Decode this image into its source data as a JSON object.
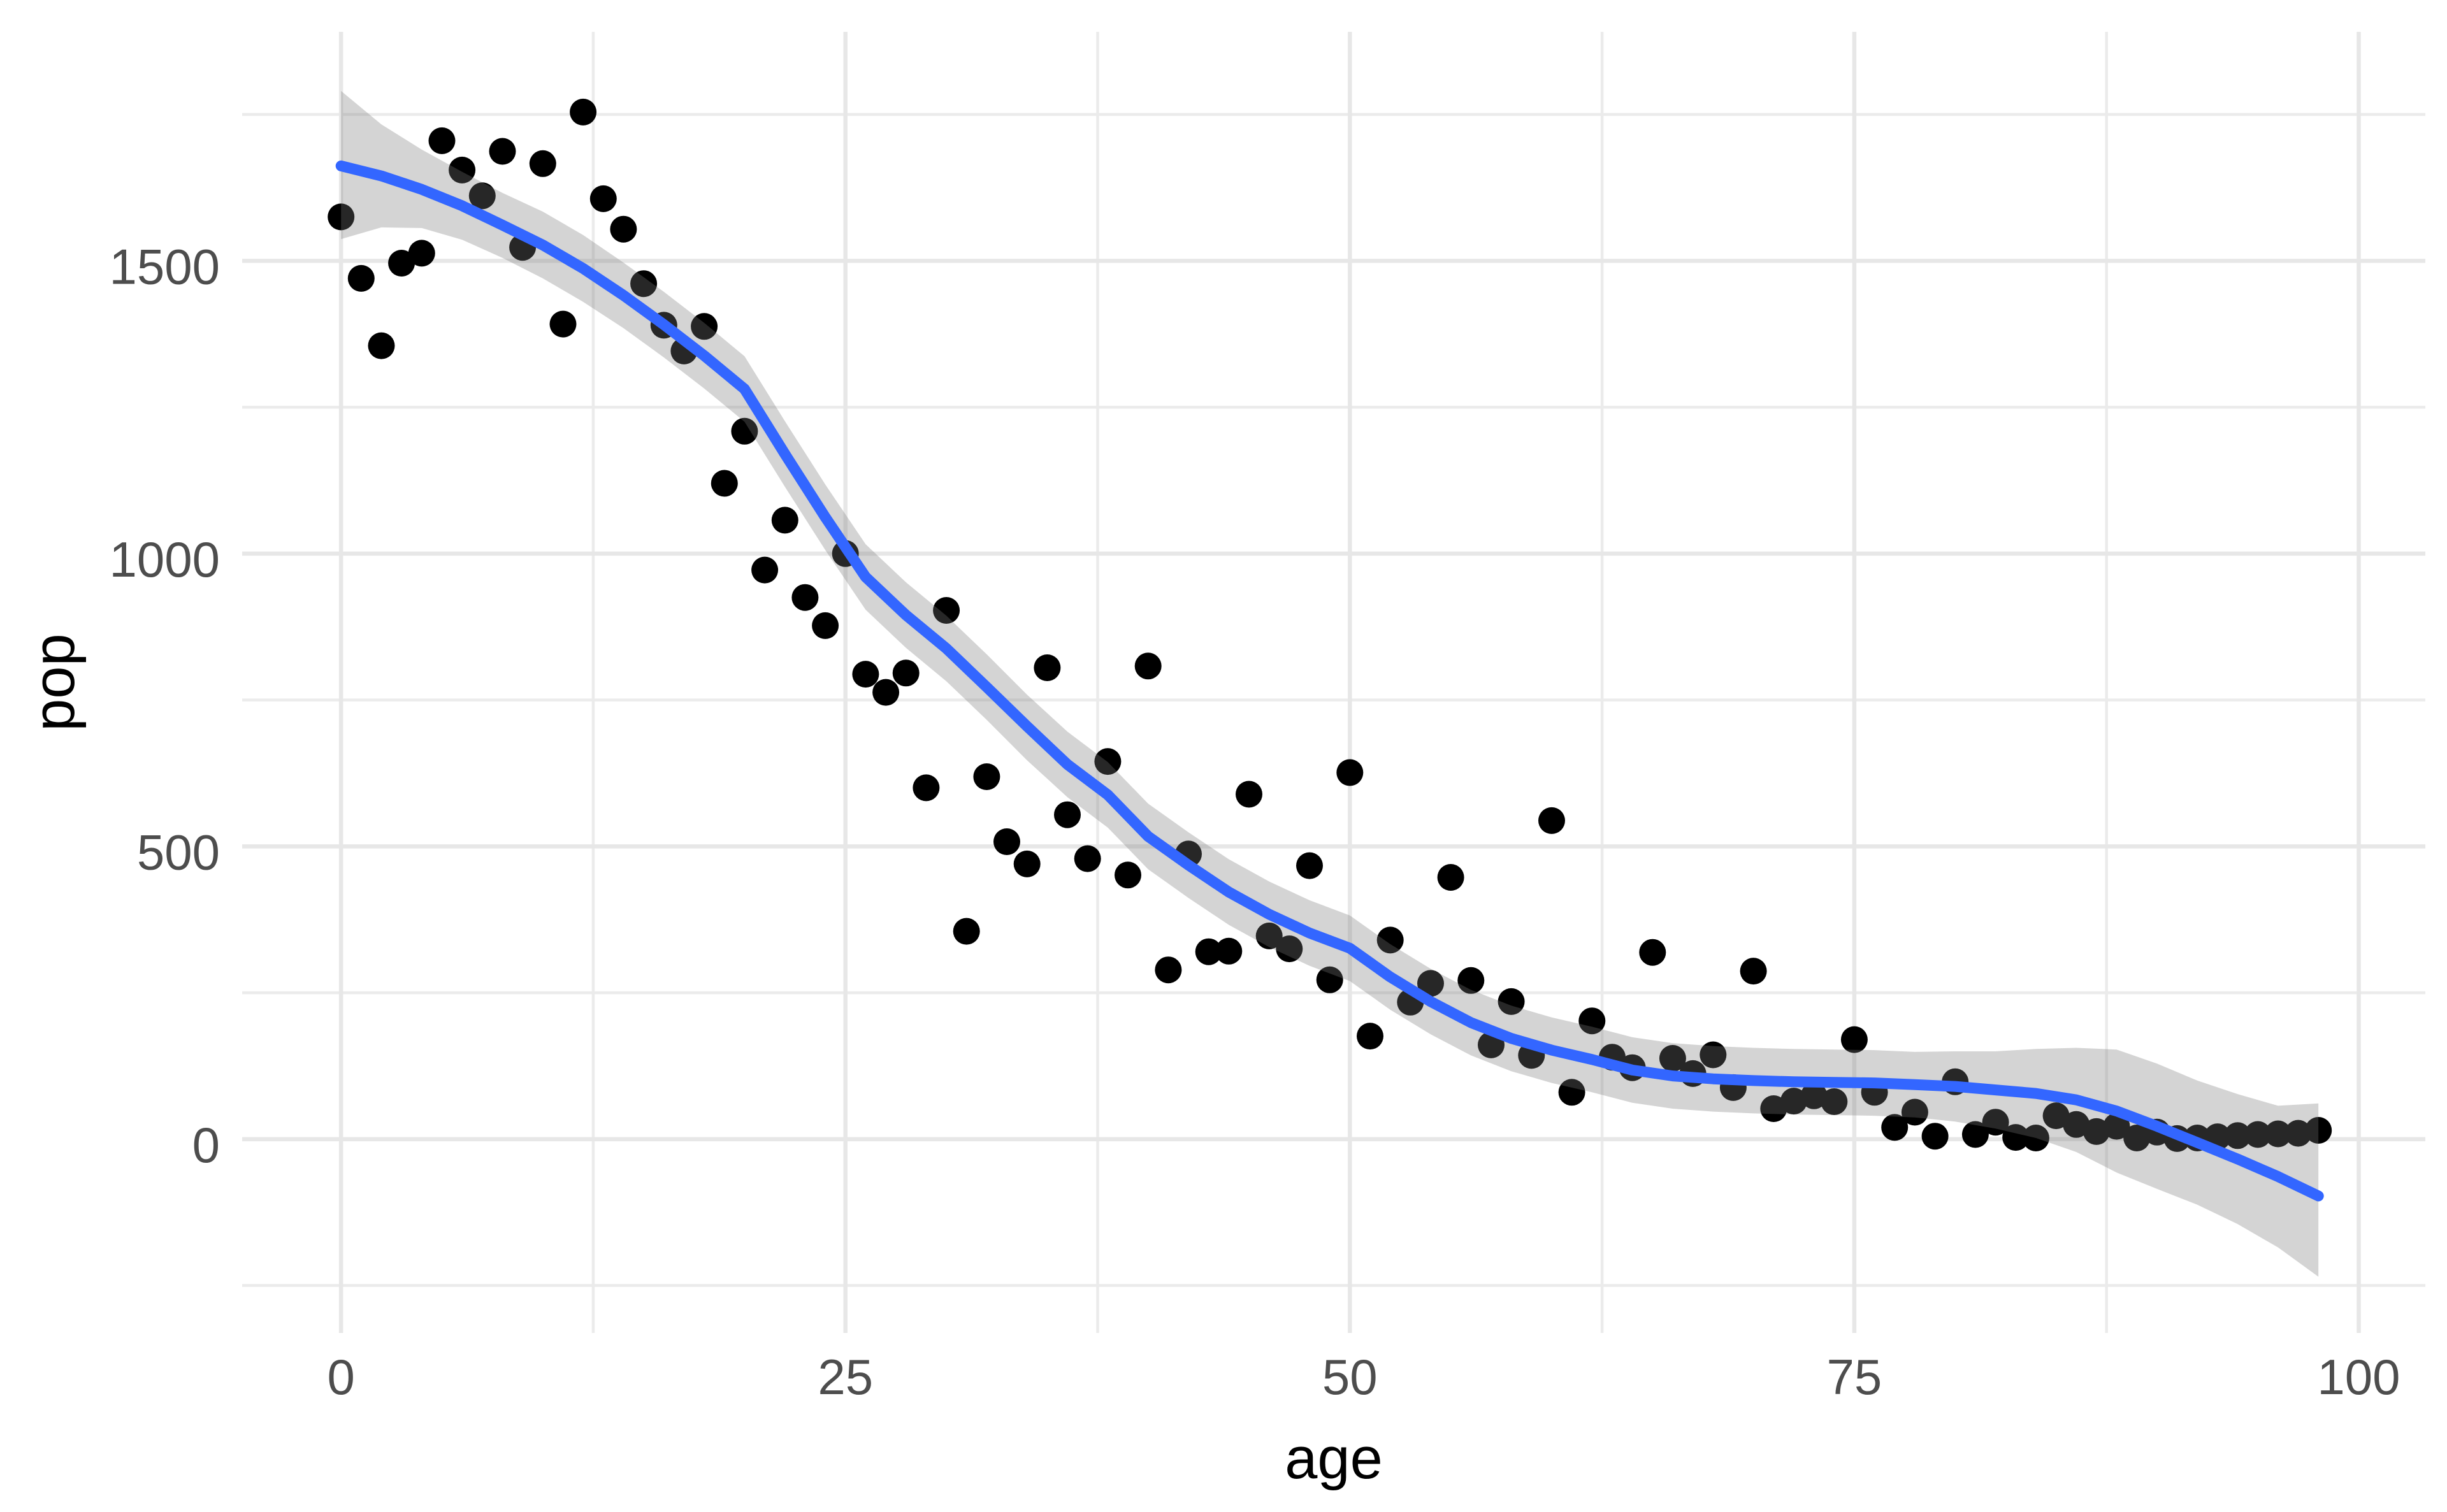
{
  "chart_data": {
    "type": "scatter",
    "title": "",
    "xlabel": "age",
    "ylabel": "pop",
    "xlim": [
      -4.9,
      103.3
    ],
    "ylim": [
      -331,
      1891
    ],
    "grid": true,
    "legend": "none",
    "x_ticks": [
      {
        "value": 0,
        "label": "0"
      },
      {
        "value": 25,
        "label": "25"
      },
      {
        "value": 50,
        "label": "50"
      },
      {
        "value": 75,
        "label": "75"
      },
      {
        "value": 100,
        "label": "100"
      }
    ],
    "y_ticks": [
      {
        "value": 0,
        "label": "0"
      },
      {
        "value": 500,
        "label": "500"
      },
      {
        "value": 1000,
        "label": "1000"
      },
      {
        "value": 1500,
        "label": "1500"
      }
    ],
    "x_minor_ticks": [
      12.5,
      37.5,
      62.5,
      87.5
    ],
    "y_minor_ticks": [
      -250,
      250,
      750,
      1250,
      1750
    ],
    "series": [
      {
        "name": "observations",
        "type": "scatter",
        "color": "#000000",
        "points": [
          [
            0,
            1575
          ],
          [
            1,
            1470
          ],
          [
            2,
            1355
          ],
          [
            3,
            1496
          ],
          [
            4,
            1513
          ],
          [
            5,
            1705
          ],
          [
            6,
            1655
          ],
          [
            7,
            1611
          ],
          [
            8,
            1687
          ],
          [
            9,
            1523
          ],
          [
            10,
            1666
          ],
          [
            11,
            1392
          ],
          [
            12,
            1754
          ],
          [
            13,
            1606
          ],
          [
            14,
            1554
          ],
          [
            15,
            1461
          ],
          [
            16,
            1390
          ],
          [
            17,
            1346
          ],
          [
            18,
            1388
          ],
          [
            19,
            1120
          ],
          [
            20,
            1209
          ],
          [
            21,
            972
          ],
          [
            22,
            1057
          ],
          [
            23,
            925
          ],
          [
            24,
            877
          ],
          [
            25,
            1000
          ],
          [
            26,
            794
          ],
          [
            27,
            763
          ],
          [
            28,
            796
          ],
          [
            29,
            600
          ],
          [
            30,
            903
          ],
          [
            31,
            355
          ],
          [
            32,
            619
          ],
          [
            33,
            508
          ],
          [
            34,
            470
          ],
          [
            35,
            805
          ],
          [
            36,
            554
          ],
          [
            37,
            479
          ],
          [
            38,
            645
          ],
          [
            39,
            451
          ],
          [
            40,
            808
          ],
          [
            41,
            289
          ],
          [
            42,
            487
          ],
          [
            43,
            320
          ],
          [
            44,
            321
          ],
          [
            45,
            589
          ],
          [
            46,
            347
          ],
          [
            47,
            325
          ],
          [
            48,
            467
          ],
          [
            49,
            272
          ],
          [
            50,
            626
          ],
          [
            51,
            176
          ],
          [
            52,
            340
          ],
          [
            53,
            234
          ],
          [
            54,
            266
          ],
          [
            55,
            447
          ],
          [
            56,
            271
          ],
          [
            57,
            161
          ],
          [
            58,
            235
          ],
          [
            59,
            143
          ],
          [
            60,
            544
          ],
          [
            61,
            80
          ],
          [
            62,
            202
          ],
          [
            63,
            140
          ],
          [
            64,
            122
          ],
          [
            65,
            319
          ],
          [
            66,
            138
          ],
          [
            67,
            112
          ],
          [
            68,
            144
          ],
          [
            69,
            88
          ],
          [
            70,
            287
          ],
          [
            71,
            52
          ],
          [
            72,
            65
          ],
          [
            73,
            74
          ],
          [
            74,
            64
          ],
          [
            75,
            170
          ],
          [
            76,
            80
          ],
          [
            77,
            20
          ],
          [
            78,
            46
          ],
          [
            79,
            5
          ],
          [
            80,
            98
          ],
          [
            81,
            8
          ],
          [
            82,
            29
          ],
          [
            83,
            3
          ],
          [
            84,
            2
          ],
          [
            85,
            40
          ],
          [
            86,
            25
          ],
          [
            87,
            13
          ],
          [
            88,
            22
          ],
          [
            89,
            2
          ],
          [
            90,
            12
          ],
          [
            91,
            1
          ],
          [
            92,
            2
          ],
          [
            93,
            4
          ],
          [
            94,
            6
          ],
          [
            95,
            8
          ],
          [
            96,
            9
          ],
          [
            97,
            10
          ],
          [
            98,
            15
          ]
        ]
      },
      {
        "name": "loess-smooth",
        "type": "line",
        "color": "#3366ff",
        "points": [
          [
            0,
            1662
          ],
          [
            2,
            1645
          ],
          [
            4,
            1622
          ],
          [
            6,
            1594
          ],
          [
            8,
            1561
          ],
          [
            10,
            1527
          ],
          [
            12,
            1487
          ],
          [
            14,
            1441
          ],
          [
            16,
            1391
          ],
          [
            18,
            1338
          ],
          [
            20,
            1281
          ],
          [
            22,
            1170
          ],
          [
            24,
            1062
          ],
          [
            26,
            960
          ],
          [
            28,
            895
          ],
          [
            30,
            838
          ],
          [
            32,
            772
          ],
          [
            34,
            705
          ],
          [
            36,
            640
          ],
          [
            38,
            588
          ],
          [
            40,
            517
          ],
          [
            42,
            468
          ],
          [
            44,
            422
          ],
          [
            46,
            384
          ],
          [
            48,
            352
          ],
          [
            50,
            326
          ],
          [
            52,
            277
          ],
          [
            54,
            235
          ],
          [
            56,
            199
          ],
          [
            58,
            172
          ],
          [
            60,
            152
          ],
          [
            62,
            136
          ],
          [
            64,
            118
          ],
          [
            66,
            108
          ],
          [
            68,
            103
          ],
          [
            70,
            100
          ],
          [
            72,
            98
          ],
          [
            74,
            97
          ],
          [
            76,
            96
          ],
          [
            78,
            93
          ],
          [
            80,
            90
          ],
          [
            82,
            84
          ],
          [
            84,
            78
          ],
          [
            86,
            67
          ],
          [
            88,
            48
          ],
          [
            90,
            22
          ],
          [
            92,
            -6
          ],
          [
            94,
            -34
          ],
          [
            96,
            -64
          ],
          [
            98,
            -97
          ]
        ]
      },
      {
        "name": "confidence-band",
        "type": "area",
        "color": "rgba(120,120,120,0.32)",
        "points": [
          [
            0,
            1537,
            1790
          ],
          [
            2,
            1557,
            1733
          ],
          [
            4,
            1556,
            1690
          ],
          [
            6,
            1536,
            1652
          ],
          [
            8,
            1505,
            1616
          ],
          [
            10,
            1470,
            1584
          ],
          [
            12,
            1430,
            1544
          ],
          [
            14,
            1385,
            1497
          ],
          [
            16,
            1335,
            1447
          ],
          [
            18,
            1282,
            1394
          ],
          [
            20,
            1225,
            1337
          ],
          [
            22,
            1114,
            1226
          ],
          [
            24,
            1006,
            1118
          ],
          [
            26,
            904,
            1016
          ],
          [
            28,
            839,
            951
          ],
          [
            30,
            782,
            894
          ],
          [
            32,
            716,
            828
          ],
          [
            34,
            647,
            759
          ],
          [
            36,
            584,
            696
          ],
          [
            38,
            532,
            644
          ],
          [
            40,
            461,
            573
          ],
          [
            42,
            412,
            524
          ],
          [
            44,
            366,
            478
          ],
          [
            46,
            328,
            440
          ],
          [
            48,
            296,
            408
          ],
          [
            50,
            270,
            382
          ],
          [
            52,
            221,
            333
          ],
          [
            54,
            179,
            291
          ],
          [
            56,
            143,
            255
          ],
          [
            58,
            116,
            228
          ],
          [
            60,
            96,
            208
          ],
          [
            62,
            80,
            192
          ],
          [
            64,
            62,
            174
          ],
          [
            66,
            52,
            164
          ],
          [
            68,
            47,
            159
          ],
          [
            70,
            44,
            156
          ],
          [
            72,
            42,
            154
          ],
          [
            74,
            41,
            153
          ],
          [
            76,
            40,
            152
          ],
          [
            78,
            37,
            149
          ],
          [
            80,
            30,
            150
          ],
          [
            82,
            18,
            150
          ],
          [
            84,
            2,
            154
          ],
          [
            86,
            -22,
            156
          ],
          [
            88,
            -57,
            153
          ],
          [
            90,
            -85,
            129
          ],
          [
            92,
            -112,
            100
          ],
          [
            94,
            -145,
            77
          ],
          [
            96,
            -185,
            57
          ],
          [
            98,
            -235,
            61
          ]
        ]
      }
    ]
  },
  "style": {
    "background": "#ffffff",
    "grid_color": "#ebebeb",
    "tick_label_color": "#4d4d4d",
    "axis_title_color": "#000000",
    "point_color": "#000000",
    "smooth_color": "#3366ff",
    "ribbon_color": "rgba(120,120,120,0.32)"
  }
}
